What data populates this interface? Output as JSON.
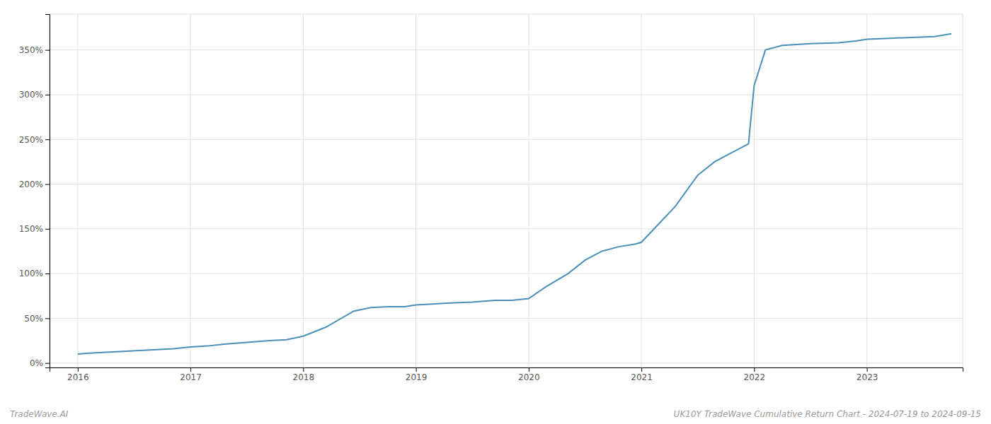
{
  "chart_data": {
    "type": "line",
    "x": [
      2016.0,
      2016.1,
      2016.25,
      2016.4,
      2016.55,
      2016.7,
      2016.85,
      2017.0,
      2017.15,
      2017.3,
      2017.5,
      2017.7,
      2017.85,
      2018.0,
      2018.2,
      2018.45,
      2018.6,
      2018.75,
      2018.9,
      2019.0,
      2019.15,
      2019.3,
      2019.5,
      2019.7,
      2019.85,
      2020.0,
      2020.15,
      2020.35,
      2020.5,
      2020.65,
      2020.8,
      2020.95,
      2021.0,
      2021.15,
      2021.3,
      2021.5,
      2021.65,
      2021.8,
      2021.95,
      2022.0,
      2022.1,
      2022.25,
      2022.5,
      2022.75,
      2022.9,
      2023.0,
      2023.2,
      2023.4,
      2023.6,
      2023.75
    ],
    "values": [
      10,
      11,
      12,
      13,
      14,
      15,
      16,
      18,
      19,
      21,
      23,
      25,
      26,
      30,
      40,
      58,
      62,
      63,
      63,
      65,
      66,
      67,
      68,
      70,
      70,
      72,
      85,
      100,
      115,
      125,
      130,
      133,
      135,
      155,
      175,
      210,
      225,
      235,
      245,
      310,
      350,
      355,
      357,
      358,
      360,
      362,
      363,
      364,
      365,
      368
    ],
    "color": "#4a90b8",
    "xlim": [
      2015.75,
      2023.85
    ],
    "xticks": [
      2016,
      2017,
      2018,
      2019,
      2020,
      2021,
      2022,
      2023
    ],
    "ylim": [
      -5,
      390
    ],
    "yticks": [
      {
        "value": 0,
        "label": "0%"
      },
      {
        "value": 50,
        "label": "50%"
      },
      {
        "value": 100,
        "label": "100%"
      },
      {
        "value": 150,
        "label": "150%"
      },
      {
        "value": 200,
        "label": "200%"
      },
      {
        "value": 250,
        "label": "250%"
      },
      {
        "value": 300,
        "label": "300%"
      },
      {
        "value": 350,
        "label": "350%"
      }
    ],
    "grid": true,
    "annotations": [
      "TradeWave.AI",
      "UK10Y TradeWave Cumulative Return Chart - 2024-07-19 to 2024-09-15"
    ]
  }
}
